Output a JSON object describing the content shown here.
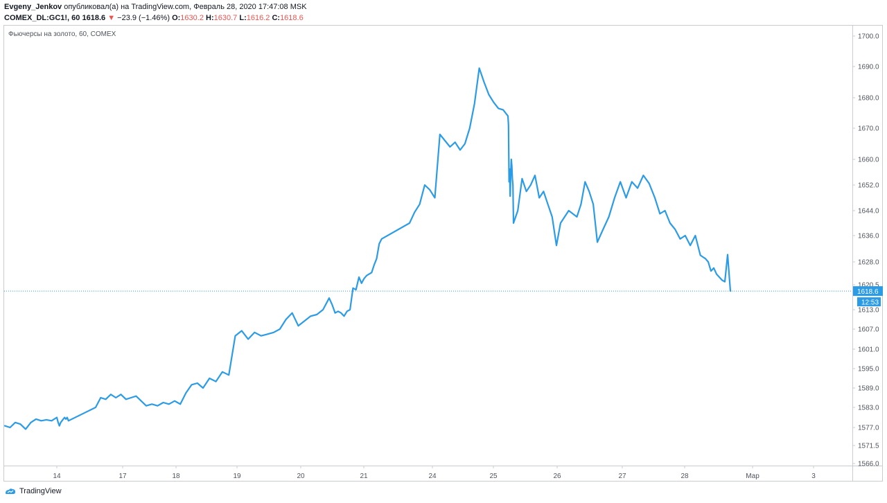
{
  "header": {
    "author": "Evgeny_Jenkov",
    "published_text": " опубликовал(а) на TradingView.com, Февраль 28, 2020 17:47:08 MSK",
    "symbol": "COMEX_DL:GC1!, 60",
    "price": "1618.6",
    "change_arrow": "▼",
    "change": "−23.9 (−1.46%)",
    "o_label": "O:",
    "o_value": "1630.2",
    "h_label": "H:",
    "h_value": "1630.7",
    "l_label": "L:",
    "l_value": "1616.2",
    "c_label": "C:",
    "c_value": "1618.6"
  },
  "chart_title": "Фьючерсы на золото, 60, COMEX",
  "footer": {
    "brand": "TradingView",
    "icon": "tradingview-logo-icon"
  },
  "colors": {
    "line": "#2b9be6",
    "price_tag": "#2b9be6",
    "negative": "#ef5350",
    "axis_text": "#50535e"
  },
  "chart_data": {
    "type": "line",
    "title": "Фьючерсы на золото, 60, COMEX",
    "x_ticks": [
      "14",
      "17",
      "18",
      "19",
      "20",
      "21",
      "24",
      "25",
      "26",
      "27",
      "28",
      "Мар",
      "3"
    ],
    "y_ticks": [
      1566.0,
      1571.5,
      1577.0,
      1583.0,
      1589.0,
      1595.0,
      1601.0,
      1607.0,
      1613.0,
      1620.5,
      1628.0,
      1636.0,
      1644.0,
      1652.0,
      1660.0,
      1670.0,
      1680.0,
      1690.0,
      1700.0
    ],
    "y_tick_labels": [
      "1566.0",
      "1571.5",
      "1577.0",
      "1583.0",
      "1589.0",
      "1595.0",
      "1601.0",
      "1607.0",
      "1613.0",
      "1620.5",
      "1628.0",
      "1636.0",
      "1644.0",
      "1652.0",
      "1660.0",
      "1670.0",
      "1680.0",
      "1690.0",
      "1700.0"
    ],
    "ylim": [
      1566.0,
      1700.0
    ],
    "last_price": 1618.6,
    "last_price_label": "1618.6",
    "countdown": "12:53",
    "grid": false,
    "series": [
      {
        "values": [
          [
            13.0,
            1577.5
          ],
          [
            13.1,
            1577.0
          ],
          [
            13.2,
            1578.5
          ],
          [
            13.3,
            1578.0
          ],
          [
            13.4,
            1576.5
          ],
          [
            13.5,
            1578.5
          ],
          [
            13.6,
            1579.5
          ],
          [
            13.7,
            1579.0
          ],
          [
            13.8,
            1579.3
          ],
          [
            13.9,
            1579.0
          ],
          [
            14.0,
            1580.0
          ],
          [
            14.1,
            1578.5
          ],
          [
            14.2,
            1577.5
          ],
          [
            14.3,
            1578.5
          ],
          [
            14.4,
            1579.0
          ],
          [
            14.5,
            1579.5
          ],
          [
            14.6,
            1580.0
          ],
          [
            14.7,
            1579.5
          ],
          [
            14.8,
            1580.0
          ],
          [
            14.9,
            1579.0
          ],
          [
            17.0,
            1583.0
          ],
          [
            17.1,
            1586.0
          ],
          [
            17.2,
            1585.5
          ],
          [
            17.3,
            1587.0
          ],
          [
            17.4,
            1586.0
          ],
          [
            17.5,
            1587.0
          ],
          [
            17.6,
            1585.5
          ],
          [
            17.7,
            1586.0
          ],
          [
            17.8,
            1586.5
          ],
          [
            17.9,
            1585.0
          ],
          [
            18.0,
            1583.5
          ],
          [
            18.1,
            1584.0
          ],
          [
            18.2,
            1583.5
          ],
          [
            18.3,
            1584.5
          ],
          [
            18.4,
            1584.0
          ],
          [
            18.5,
            1585.0
          ],
          [
            18.6,
            1584.0
          ],
          [
            18.7,
            1587.5
          ],
          [
            18.8,
            1590.0
          ],
          [
            18.9,
            1590.5
          ],
          [
            19.0,
            1589.0
          ],
          [
            19.1,
            1592.0
          ],
          [
            19.2,
            1591.0
          ],
          [
            19.3,
            1594.0
          ],
          [
            19.4,
            1593.0
          ],
          [
            19.5,
            1605.0
          ],
          [
            19.6,
            1606.5
          ],
          [
            19.7,
            1604.0
          ],
          [
            19.8,
            1606.0
          ],
          [
            19.9,
            1605.0
          ],
          [
            20.0,
            1605.5
          ],
          [
            20.1,
            1606.0
          ],
          [
            20.2,
            1607.0
          ],
          [
            20.3,
            1610.0
          ],
          [
            20.4,
            1612.0
          ],
          [
            20.5,
            1608.0
          ],
          [
            20.6,
            1609.5
          ],
          [
            20.7,
            1611.0
          ],
          [
            20.8,
            1611.5
          ],
          [
            20.9,
            1613.0
          ],
          [
            21.0,
            1616.5
          ],
          [
            21.1,
            1614.5
          ],
          [
            21.2,
            1612.0
          ],
          [
            21.3,
            1612.5
          ],
          [
            21.4,
            1612.0
          ],
          [
            21.5,
            1611.0
          ],
          [
            21.6,
            1612.5
          ],
          [
            21.7,
            1613.0
          ],
          [
            21.8,
            1619.5
          ],
          [
            21.9,
            1619.0
          ],
          [
            22.0,
            1623.0
          ],
          [
            22.1,
            1621.0
          ],
          [
            22.2,
            1622.5
          ],
          [
            22.3,
            1623.5
          ],
          [
            22.4,
            1624.0
          ],
          [
            22.5,
            1624.5
          ],
          [
            22.6,
            1627.0
          ],
          [
            22.7,
            1629.0
          ],
          [
            22.8,
            1633.5
          ],
          [
            22.9,
            1635.0
          ],
          [
            24.0,
            1640.0
          ],
          [
            24.1,
            1643.5
          ],
          [
            24.2,
            1646.0
          ],
          [
            24.3,
            1652.0
          ],
          [
            24.4,
            1650.5
          ],
          [
            24.5,
            1648.0
          ],
          [
            24.6,
            1668.0
          ],
          [
            24.7,
            1666.0
          ],
          [
            24.8,
            1664.0
          ],
          [
            24.9,
            1665.5
          ],
          [
            25.0,
            1663.0
          ],
          [
            25.1,
            1665.0
          ],
          [
            25.2,
            1670.0
          ],
          [
            25.3,
            1678.0
          ],
          [
            25.4,
            1689.5
          ],
          [
            25.5,
            1685.0
          ],
          [
            25.6,
            1681.0
          ],
          [
            25.7,
            1678.5
          ],
          [
            25.8,
            1676.5
          ],
          [
            25.9,
            1676.0
          ],
          [
            26.0,
            1674.0
          ],
          [
            26.1,
            1671.0
          ],
          [
            26.2,
            1653.0
          ],
          [
            26.3,
            1657.0
          ],
          [
            26.4,
            1648.5
          ],
          [
            26.5,
            1655.0
          ],
          [
            26.6,
            1660.0
          ],
          [
            26.7,
            1658.0
          ],
          [
            26.8,
            1654.0
          ],
          [
            26.9,
            1652.0
          ],
          [
            27.0,
            1640.0
          ],
          [
            27.1,
            1644.0
          ],
          [
            27.2,
            1654.0
          ],
          [
            27.3,
            1650.0
          ],
          [
            27.4,
            1652.0
          ],
          [
            27.5,
            1655.0
          ],
          [
            27.6,
            1648.0
          ],
          [
            27.7,
            1650.0
          ],
          [
            27.8,
            1646.0
          ],
          [
            27.9,
            1642.0
          ],
          [
            28.0,
            1633.0
          ],
          [
            28.1,
            1640.0
          ],
          [
            28.2,
            1642.0
          ],
          [
            28.3,
            1644.0
          ],
          [
            28.4,
            1643.0
          ],
          [
            28.5,
            1642.0
          ],
          [
            28.6,
            1646.0
          ],
          [
            28.7,
            1653.0
          ],
          [
            28.8,
            1650.0
          ],
          [
            28.9,
            1646.0
          ],
          [
            29.0,
            1634.0
          ],
          [
            29.1,
            1638.0
          ],
          [
            29.2,
            1642.0
          ],
          [
            29.3,
            1648.0
          ],
          [
            29.4,
            1653.0
          ],
          [
            29.5,
            1648.0
          ],
          [
            29.6,
            1653.0
          ],
          [
            29.7,
            1651.0
          ],
          [
            29.8,
            1655.0
          ],
          [
            29.9,
            1652.5
          ],
          [
            30.0,
            1648.0
          ],
          [
            30.1,
            1643.0
          ],
          [
            30.2,
            1644.0
          ],
          [
            30.3,
            1640.0
          ],
          [
            30.4,
            1638.0
          ],
          [
            30.5,
            1635.0
          ],
          [
            30.6,
            1636.0
          ],
          [
            30.7,
            1633.0
          ],
          [
            30.8,
            1636.0
          ],
          [
            30.9,
            1630.0
          ],
          [
            31.0,
            1629.0
          ],
          [
            31.1,
            1628.0
          ],
          [
            31.2,
            1625.0
          ],
          [
            31.3,
            1626.0
          ],
          [
            31.4,
            1624.0
          ],
          [
            31.5,
            1623.0
          ],
          [
            31.6,
            1622.0
          ],
          [
            31.7,
            1621.5
          ],
          [
            31.8,
            1630.2
          ],
          [
            31.9,
            1618.6
          ]
        ]
      }
    ]
  }
}
